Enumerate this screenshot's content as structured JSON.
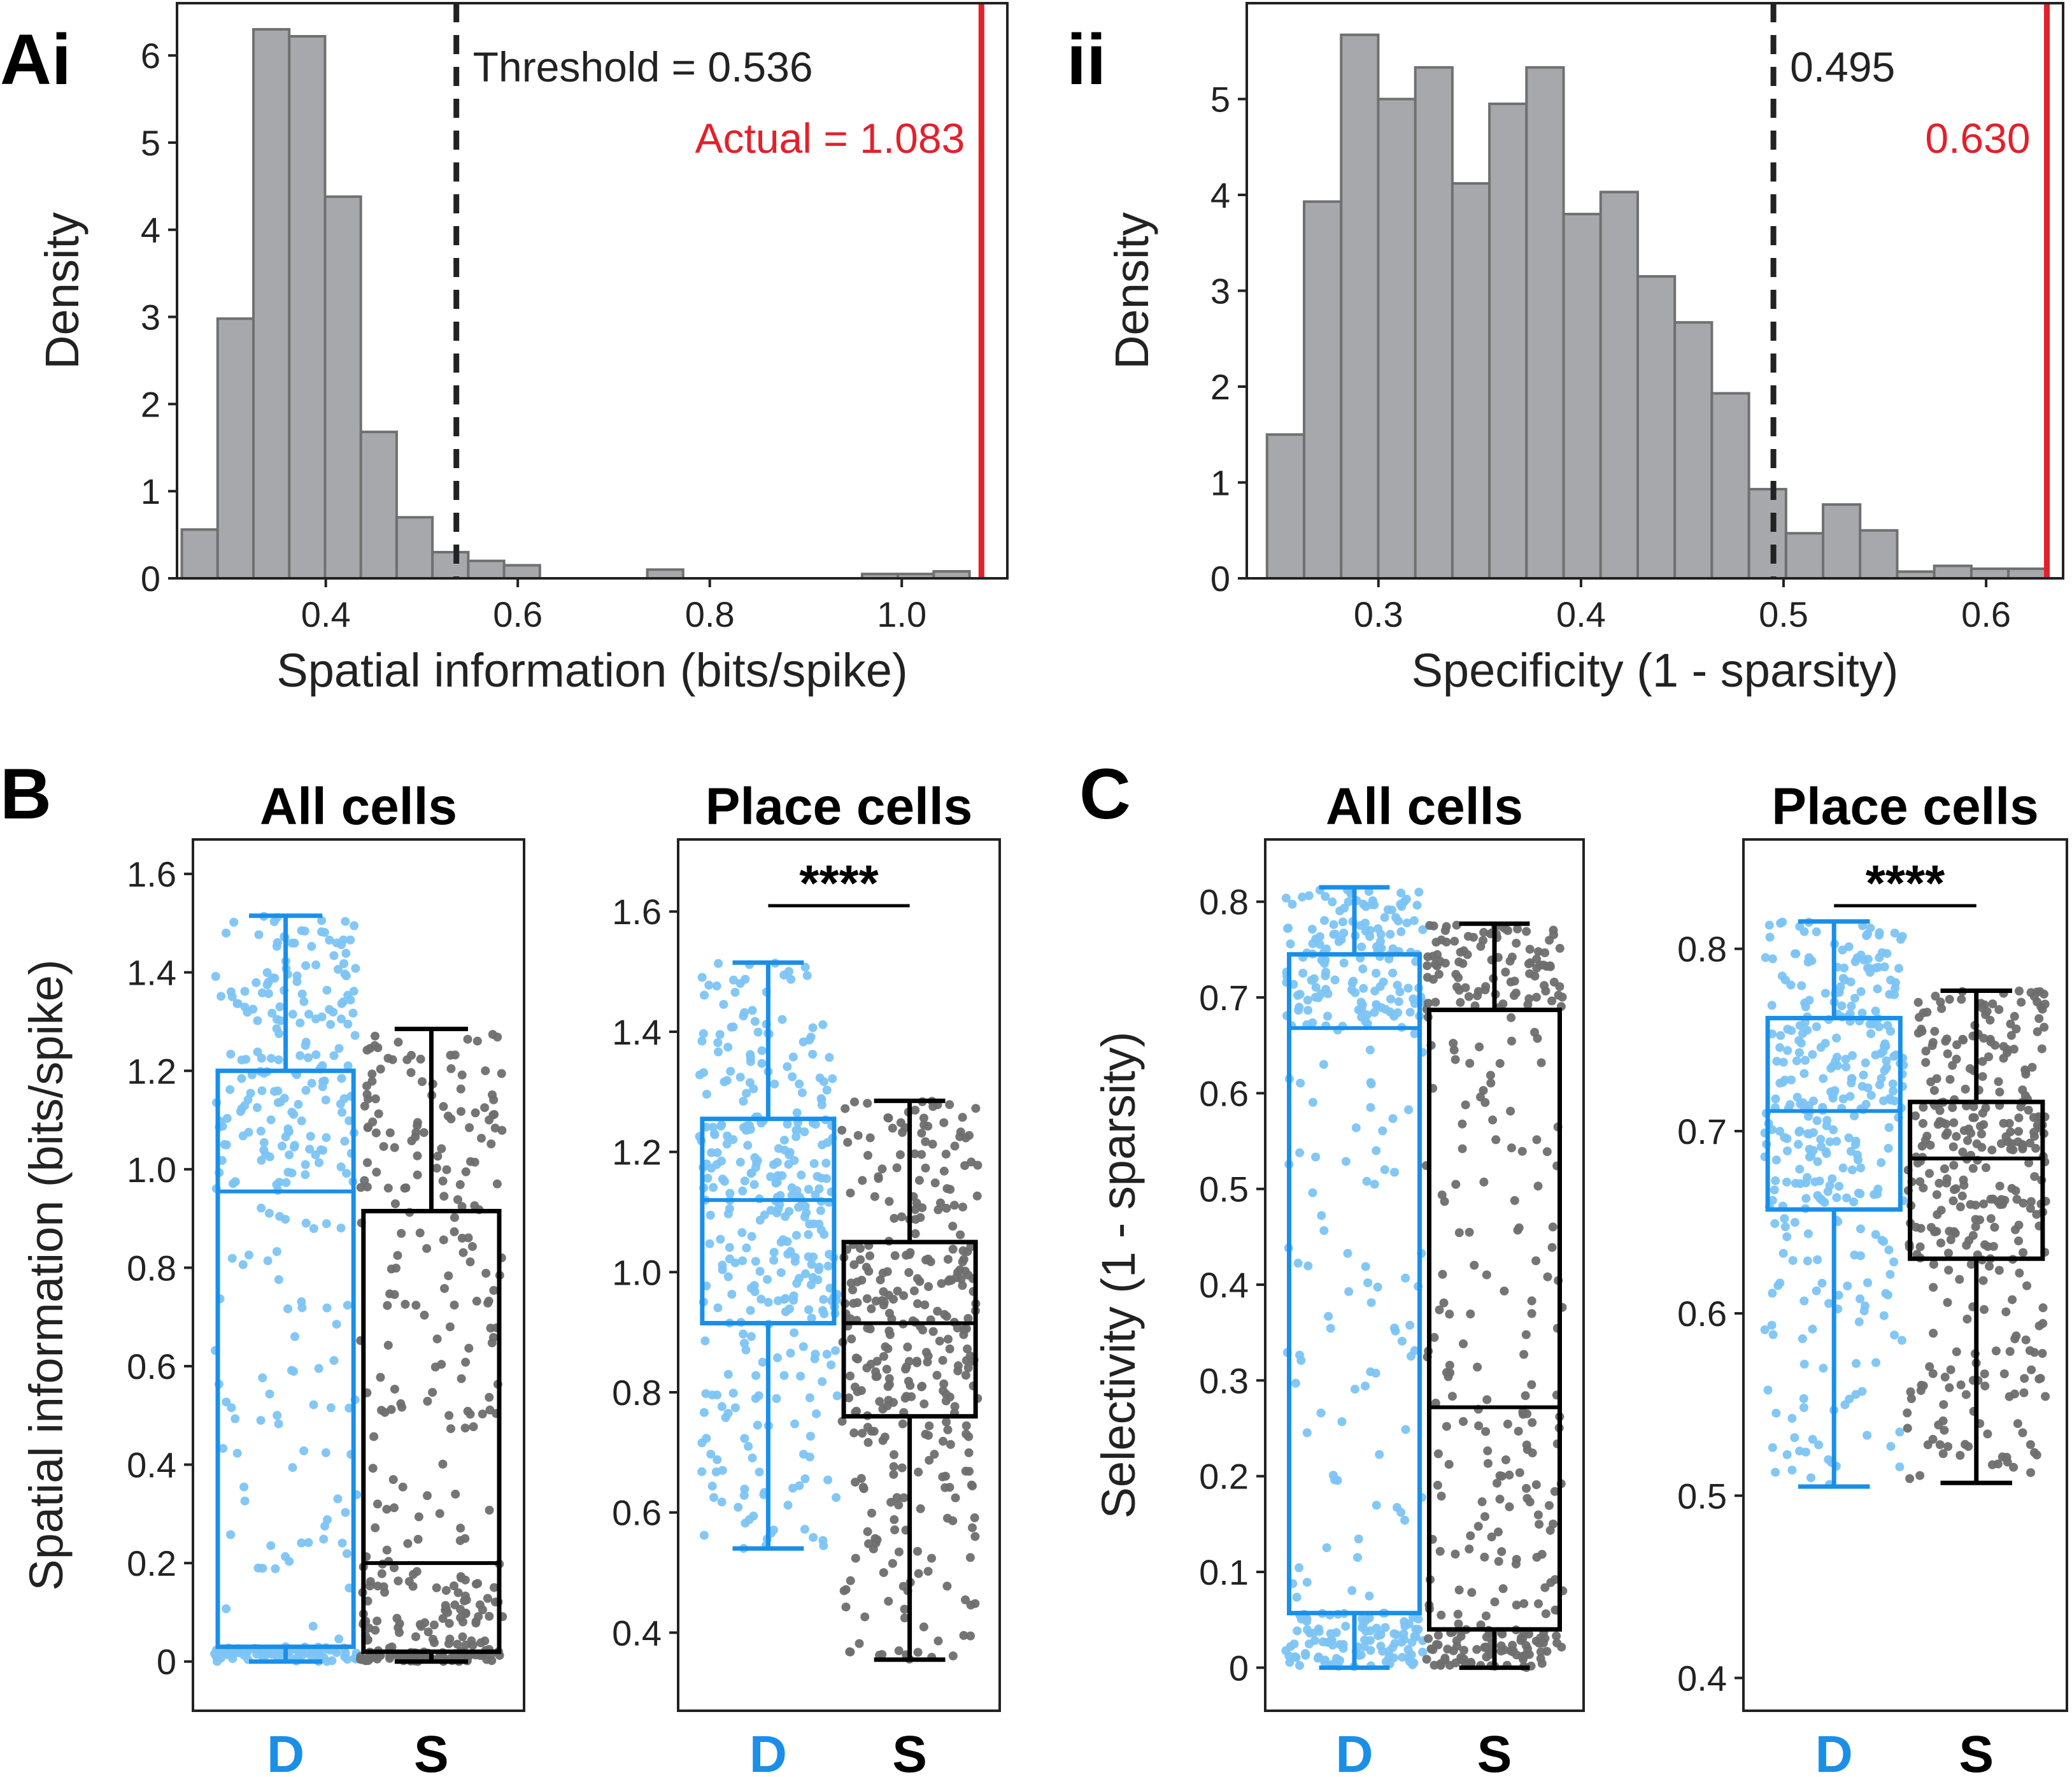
{
  "colors": {
    "hist_fill": "#a7a8ac",
    "hist_edge": "#707070",
    "threshold": "#222222",
    "actual": "#e3202b",
    "deep": "#1a8fe8",
    "deep_points": "#7cc4f4",
    "superficial": "#000000",
    "superficial_points": "#6e6e6e"
  },
  "panel_labels": {
    "ai": "Ai",
    "ii": "ii",
    "b": "B",
    "c": "C"
  },
  "chart_data": [
    {
      "id": "Ai",
      "type": "bar",
      "xlabel": "Spatial information (bits/spike)",
      "ylabel": "Density",
      "xlim": [
        0.245,
        1.11
      ],
      "ylim": [
        0,
        6.6
      ],
      "xticks": [
        0.4,
        0.6,
        0.8,
        1.0
      ],
      "xtick_labels": [
        "0.4",
        "0.6",
        "0.8",
        "1.0"
      ],
      "yticks": [
        0,
        1,
        2,
        3,
        4,
        5,
        6
      ],
      "ytick_labels": [
        "0",
        "1",
        "2",
        "3",
        "4",
        "5",
        "6"
      ],
      "bin_start": 0.25,
      "bin_width": 0.0373,
      "values": [
        0.56,
        2.98,
        6.3,
        6.22,
        4.38,
        1.68,
        0.7,
        0.3,
        0.2,
        0.15,
        0,
        0,
        0,
        0.1,
        0,
        0,
        0,
        0,
        0,
        0.05,
        0.05,
        0.08
      ],
      "threshold": 0.536,
      "actual": 1.083,
      "threshold_label": "Threshold = 0.536",
      "actual_label": "Actual = 1.083"
    },
    {
      "id": "ii",
      "type": "bar",
      "xlabel": "Specificity (1 - sparsity)",
      "ylabel": "Density",
      "xlim": [
        0.235,
        0.638
      ],
      "ylim": [
        0,
        6.0
      ],
      "xticks": [
        0.3,
        0.4,
        0.5,
        0.6
      ],
      "xtick_labels": [
        "0.3",
        "0.4",
        "0.5",
        "0.6"
      ],
      "yticks": [
        0,
        1,
        2,
        3,
        4,
        5
      ],
      "ytick_labels": [
        "0",
        "1",
        "2",
        "3",
        "4",
        "5"
      ],
      "bin_start": 0.245,
      "bin_width": 0.0183,
      "values": [
        1.5,
        3.93,
        5.67,
        5.0,
        5.33,
        4.12,
        4.95,
        5.33,
        3.8,
        4.03,
        3.15,
        2.67,
        1.93,
        0.93,
        0.47,
        0.77,
        0.5,
        0.07,
        0.13,
        0.1,
        0.1
      ],
      "threshold": 0.495,
      "actual": 0.63,
      "threshold_label": "0.495",
      "actual_label": "0.630"
    },
    {
      "id": "B-all",
      "type": "box",
      "title": "All cells",
      "ylabel": "Spatial information (bits/spike)",
      "ylim": [
        -0.1,
        1.67
      ],
      "yticks": [
        0,
        0.2,
        0.4,
        0.6,
        0.8,
        1.0,
        1.2,
        1.4,
        1.6
      ],
      "ytick_labels": [
        "0",
        "0.2",
        "0.4",
        "0.6",
        "0.8",
        "1.0",
        "1.2",
        "1.4",
        "1.6"
      ],
      "categories": [
        "D",
        "S"
      ],
      "boxes": [
        {
          "q1": 0.03,
          "median": 0.955,
          "q3": 1.2,
          "whisker_low": 0.0,
          "whisker_high": 1.515
        },
        {
          "q1": 0.02,
          "median": 0.2,
          "q3": 0.915,
          "whisker_low": 0.0,
          "whisker_high": 1.285
        }
      ],
      "significance": ""
    },
    {
      "id": "B-place",
      "type": "box",
      "title": "Place cells",
      "ylabel": "",
      "ylim": [
        0.27,
        1.72
      ],
      "yticks": [
        0.4,
        0.6,
        0.8,
        1.0,
        1.2,
        1.4,
        1.6
      ],
      "ytick_labels": [
        "0.4",
        "0.6",
        "0.8",
        "1.0",
        "1.2",
        "1.4",
        "1.6"
      ],
      "categories": [
        "D",
        "S"
      ],
      "boxes": [
        {
          "q1": 0.915,
          "median": 1.12,
          "q3": 1.255,
          "whisker_low": 0.54,
          "whisker_high": 1.515
        },
        {
          "q1": 0.76,
          "median": 0.915,
          "q3": 1.05,
          "whisker_low": 0.355,
          "whisker_high": 1.285
        }
      ],
      "significance": "****"
    },
    {
      "id": "C-all",
      "type": "box",
      "title": "All cells",
      "ylabel": "Selectivity (1 - sparsity)",
      "ylim": [
        -0.045,
        0.865
      ],
      "yticks": [
        0,
        0.1,
        0.2,
        0.3,
        0.4,
        0.5,
        0.6,
        0.7,
        0.8
      ],
      "ytick_labels": [
        "0",
        "0.1",
        "0.2",
        "0.3",
        "0.4",
        "0.5",
        "0.6",
        "0.7",
        "0.8"
      ],
      "categories": [
        "D",
        "S"
      ],
      "boxes": [
        {
          "q1": 0.057,
          "median": 0.668,
          "q3": 0.745,
          "whisker_low": 0.0,
          "whisker_high": 0.815
        },
        {
          "q1": 0.04,
          "median": 0.272,
          "q3": 0.687,
          "whisker_low": 0.0,
          "whisker_high": 0.777
        }
      ],
      "significance": ""
    },
    {
      "id": "C-place",
      "type": "box",
      "title": "Place cells",
      "ylabel": "",
      "ylim": [
        0.382,
        0.86
      ],
      "yticks": [
        0.4,
        0.5,
        0.6,
        0.7,
        0.8
      ],
      "ytick_labels": [
        "0.4",
        "0.5",
        "0.6",
        "0.7",
        "0.8"
      ],
      "categories": [
        "D",
        "S"
      ],
      "boxes": [
        {
          "q1": 0.657,
          "median": 0.711,
          "q3": 0.762,
          "whisker_low": 0.505,
          "whisker_high": 0.815
        },
        {
          "q1": 0.63,
          "median": 0.685,
          "q3": 0.716,
          "whisker_low": 0.507,
          "whisker_high": 0.777
        }
      ],
      "significance": "****"
    }
  ]
}
